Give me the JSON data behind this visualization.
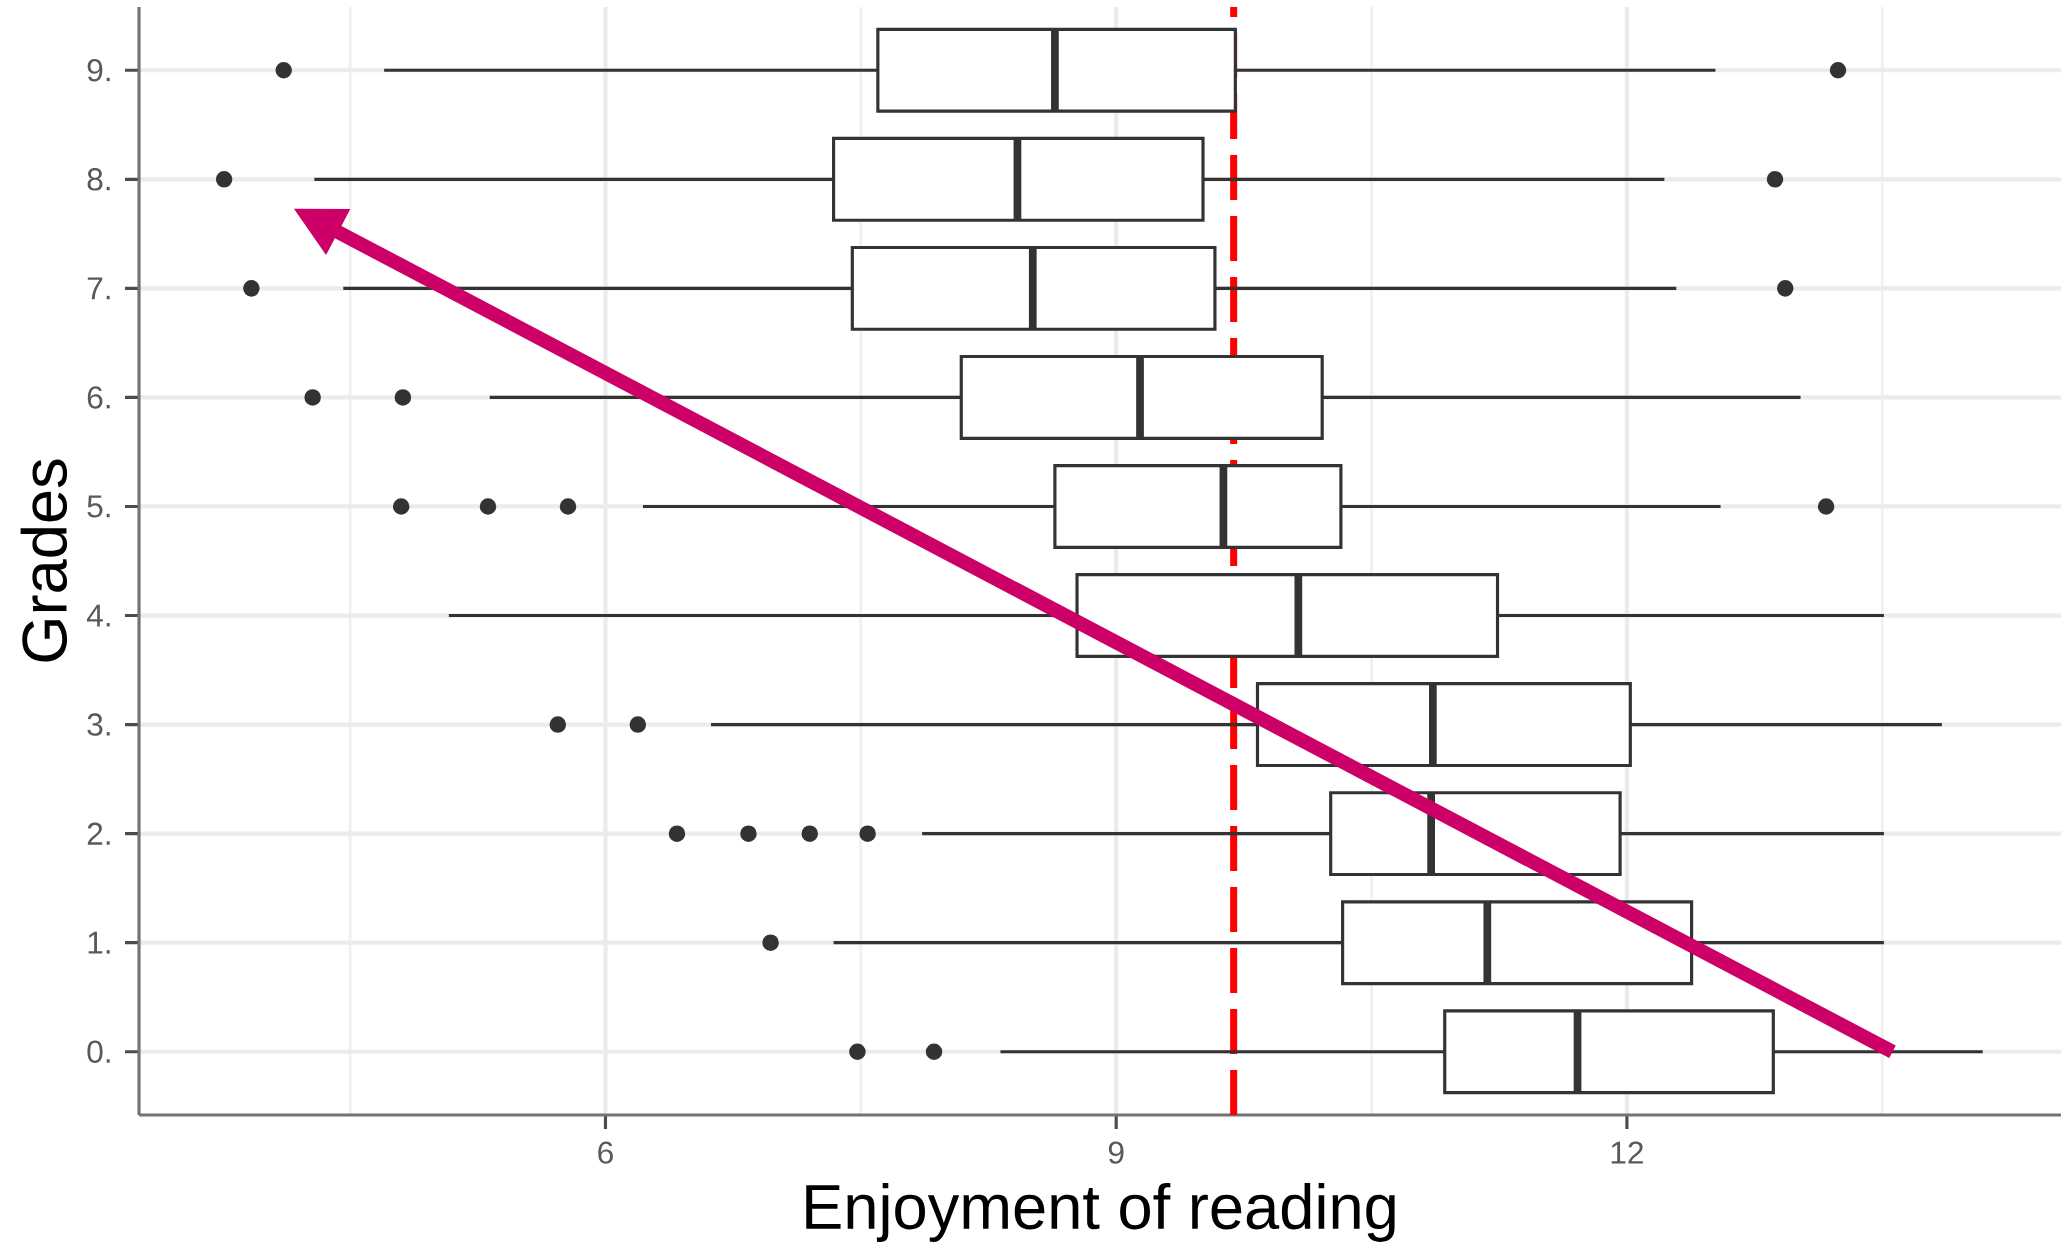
{
  "chart_data": {
    "type": "box",
    "orientation": "horizontal",
    "xlabel": "Enjoyment of reading",
    "ylabel": "Grades",
    "categories": [
      "9.",
      "8.",
      "7.",
      "6.",
      "5.",
      "4.",
      "3.",
      "2.",
      "1.",
      "0."
    ],
    "xlim": [
      3.26,
      14.55
    ],
    "xticks": [
      6,
      9,
      12
    ],
    "grid": true,
    "series": [
      {
        "color": "#333333",
        "boxes": [
          {
            "low": 4.7,
            "q1": 7.6,
            "median": 8.64,
            "q3": 9.7,
            "high": 12.52,
            "outliers": [
              4.11,
              13.24
            ]
          },
          {
            "low": 4.29,
            "q1": 7.34,
            "median": 8.42,
            "q3": 9.51,
            "high": 12.22,
            "outliers": [
              3.76,
              12.87
            ]
          },
          {
            "low": 4.46,
            "q1": 7.45,
            "median": 8.51,
            "q3": 9.58,
            "high": 12.29,
            "outliers": [
              3.92,
              12.93
            ]
          },
          {
            "low": 5.32,
            "q1": 8.09,
            "median": 9.14,
            "q3": 10.21,
            "high": 13.02,
            "outliers": [
              4.28,
              4.81
            ]
          },
          {
            "low": 6.22,
            "q1": 8.64,
            "median": 9.63,
            "q3": 10.32,
            "high": 12.55,
            "outliers": [
              4.8,
              5.31,
              5.78,
              13.17
            ]
          },
          {
            "low": 5.08,
            "q1": 8.77,
            "median": 10.07,
            "q3": 11.24,
            "high": 13.51
          },
          {
            "low": 6.62,
            "q1": 9.83,
            "median": 10.86,
            "q3": 12.02,
            "high": 13.85,
            "outliers": [
              5.72,
              6.19
            ]
          },
          {
            "low": 7.86,
            "q1": 10.26,
            "median": 10.85,
            "q3": 11.96,
            "high": 13.51,
            "outliers": [
              6.42,
              6.84,
              7.2,
              7.54
            ]
          },
          {
            "low": 7.34,
            "q1": 10.33,
            "median": 11.18,
            "q3": 12.38,
            "high": 13.51,
            "outliers": [
              6.97
            ]
          },
          {
            "low": 8.32,
            "q1": 10.93,
            "median": 11.71,
            "q3": 12.86,
            "high": 14.09,
            "outliers": [
              7.48,
              7.93
            ]
          }
        ]
      }
    ],
    "ref_lines": [
      {
        "axis": "x",
        "value": 9.69,
        "color": "#ff0000",
        "line_style": "dashed"
      }
    ]
  }
}
